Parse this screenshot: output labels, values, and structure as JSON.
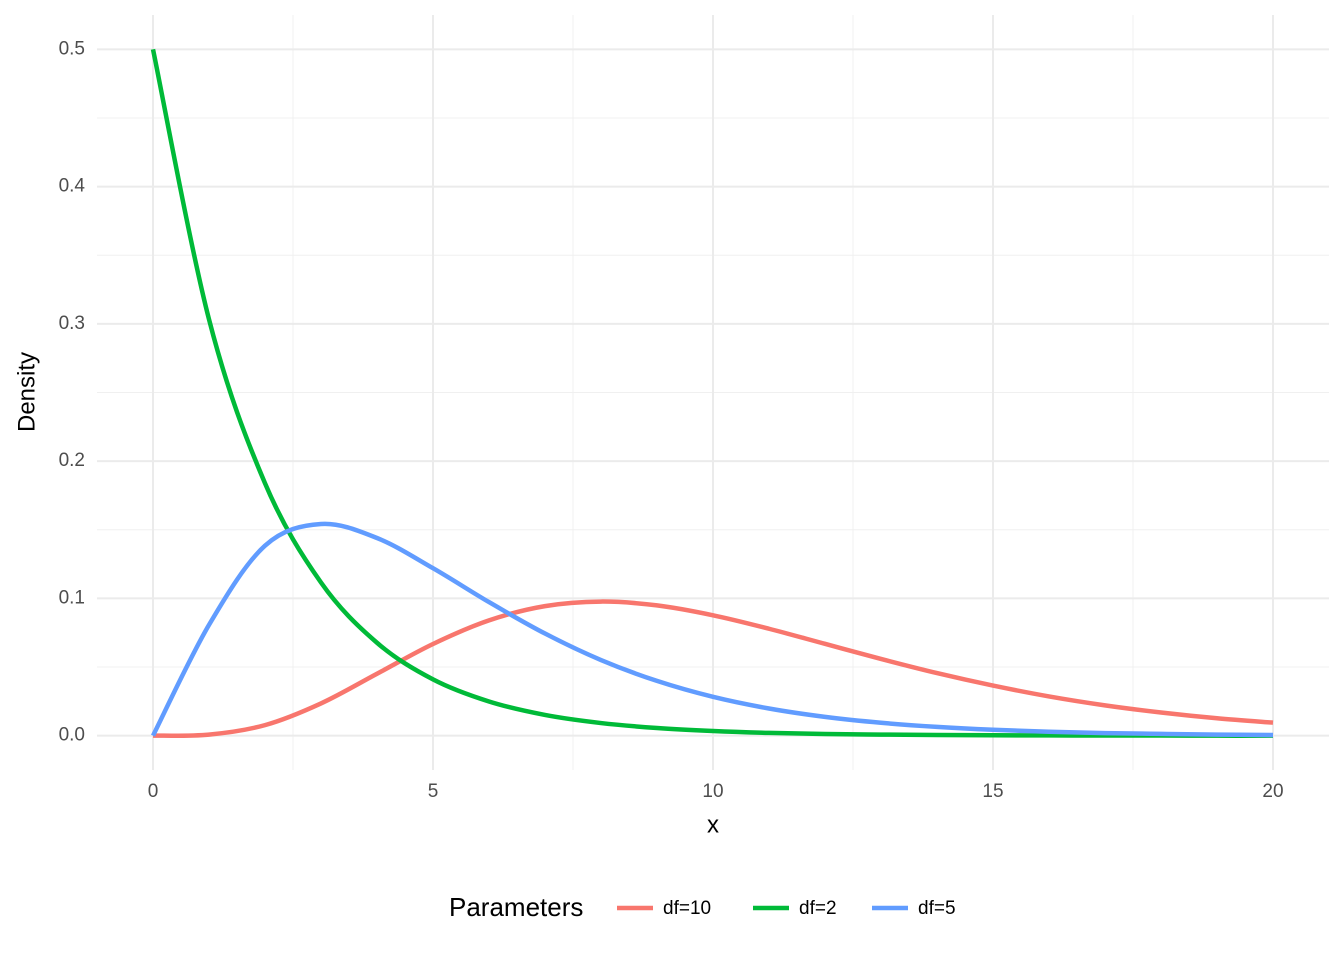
{
  "chart_data": {
    "type": "line",
    "x_label": "x",
    "y_label": "Density",
    "legend_title": "Parameters",
    "legend_position": "bottom",
    "grid": true,
    "x": [
      0,
      1,
      2,
      3,
      4,
      5,
      6,
      7,
      8,
      9,
      10,
      11,
      12,
      13,
      14,
      15,
      16,
      17,
      18,
      19,
      20
    ],
    "series": [
      {
        "name": "df=10",
        "color": "#F8766D",
        "values": [
          0,
          0.0008,
          0.0077,
          0.0235,
          0.0451,
          0.0668,
          0.084,
          0.0944,
          0.0977,
          0.0949,
          0.0877,
          0.0779,
          0.0669,
          0.0559,
          0.0456,
          0.0365,
          0.0286,
          0.0221,
          0.0169,
          0.0127,
          0.0095
        ]
      },
      {
        "name": "df=2",
        "color": "#00BA38",
        "values": [
          0.5,
          0.3033,
          0.1839,
          0.1116,
          0.0677,
          0.041,
          0.0249,
          0.0151,
          0.0092,
          0.0056,
          0.0034,
          0.002,
          0.0012,
          0.0008,
          0.0005,
          0.0003,
          0.0002,
          0.0001,
          0.0001,
          0,
          0
        ]
      },
      {
        "name": "df=5",
        "color": "#619CFF",
        "values": [
          0,
          0.0807,
          0.1384,
          0.1542,
          0.144,
          0.122,
          0.0973,
          0.0744,
          0.0551,
          0.0399,
          0.0283,
          0.0198,
          0.0137,
          0.0094,
          0.0064,
          0.0043,
          0.0029,
          0.0019,
          0.0013,
          0.0008,
          0.0005
        ]
      }
    ],
    "xlim": [
      -1,
      21
    ],
    "ylim": [
      -0.025,
      0.525
    ],
    "xticks": [
      0,
      5,
      10,
      15,
      20
    ],
    "yticks": [
      {
        "value": 0,
        "label": "0.0"
      },
      0.1,
      0.2,
      0.3,
      0.4,
      0.5
    ],
    "x_minor_ticks": [
      2.5,
      7.5,
      12.5,
      17.5
    ],
    "y_minor_ticks": [
      0.05,
      0.15,
      0.25,
      0.35,
      0.45
    ]
  }
}
